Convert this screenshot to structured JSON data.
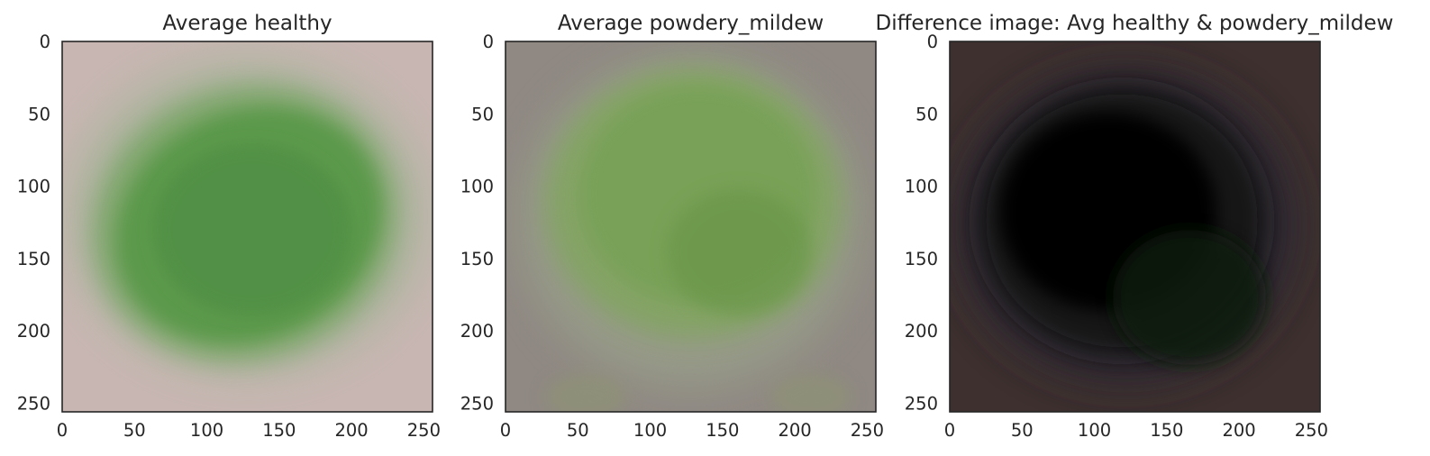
{
  "chart_data": [
    {
      "type": "image",
      "title": "Average healthy",
      "xlim": [
        0,
        256
      ],
      "ylim": [
        256,
        0
      ],
      "x_ticks": [
        0,
        50,
        100,
        150,
        200,
        250
      ],
      "y_ticks": [
        0,
        50,
        100,
        150,
        200,
        250
      ],
      "image_description_colors": {
        "background": "#c7b6b2",
        "leaf": "#5f9a4f",
        "leaf_dark": "#4e8c44"
      },
      "grid": false
    },
    {
      "type": "image",
      "title": "Average powdery_mildew",
      "xlim": [
        0,
        256
      ],
      "ylim": [
        256,
        0
      ],
      "x_ticks": [
        0,
        50,
        100,
        150,
        200,
        250
      ],
      "y_ticks": [
        0,
        50,
        100,
        150,
        200,
        250
      ],
      "image_description_colors": {
        "background": "#8f8883",
        "leaf": "#7fa65a",
        "leaf_dark": "#6e9a4b"
      },
      "grid": false
    },
    {
      "type": "image",
      "title": "Difference image: Avg healthy & powdery_mildew",
      "xlim": [
        0,
        256
      ],
      "ylim": [
        256,
        0
      ],
      "x_ticks": [
        0,
        50,
        100,
        150,
        200,
        250
      ],
      "y_ticks": [
        0,
        50,
        100,
        150,
        200,
        250
      ],
      "image_description_colors": {
        "background": "#3d302e",
        "leaf": "#050606",
        "leaf_dark": "#0c1a0c"
      },
      "grid": false
    }
  ]
}
